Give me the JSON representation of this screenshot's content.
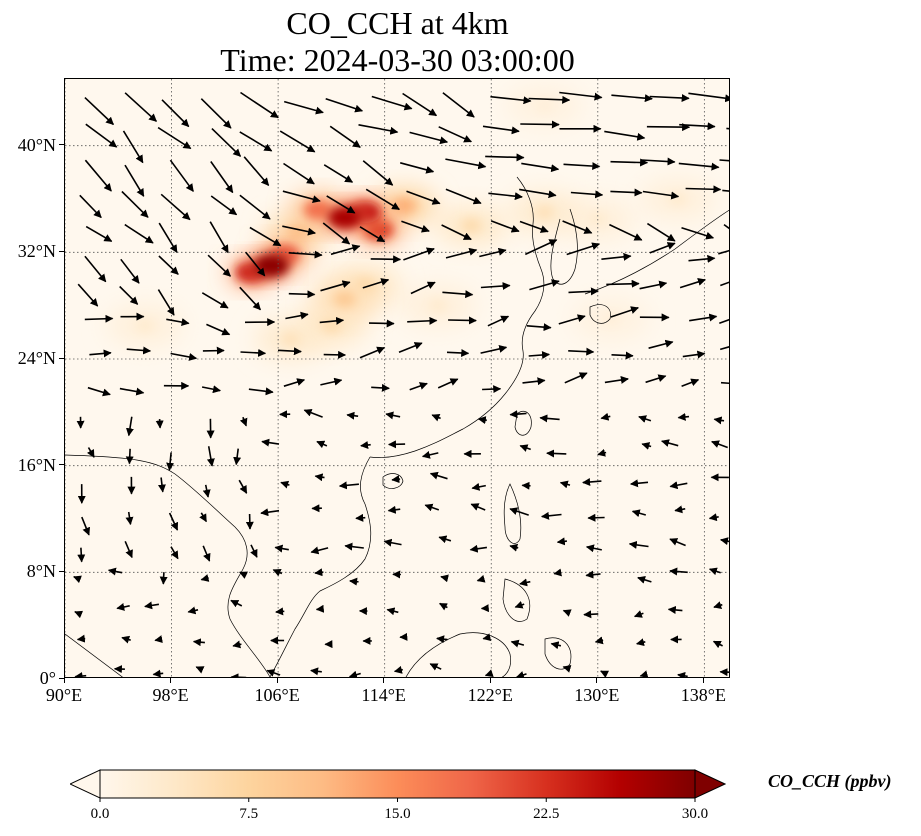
{
  "title": {
    "line1": "CO_CCH at 4km",
    "line2": "Time: 2024-03-30 03:00:00"
  },
  "axes": {
    "lon_range": [
      90,
      140
    ],
    "lat_range": [
      0,
      45
    ],
    "lon_ticks": [
      {
        "value": 90,
        "label": "90°E"
      },
      {
        "value": 98,
        "label": "98°E"
      },
      {
        "value": 106,
        "label": "106°E"
      },
      {
        "value": 114,
        "label": "114°E"
      },
      {
        "value": 122,
        "label": "122°E"
      },
      {
        "value": 130,
        "label": "130°E"
      },
      {
        "value": 138,
        "label": "138°E"
      }
    ],
    "lat_ticks": [
      {
        "value": 0,
        "label": "0°"
      },
      {
        "value": 8,
        "label": "8°N"
      },
      {
        "value": 16,
        "label": "16°N"
      },
      {
        "value": 24,
        "label": "24°N"
      },
      {
        "value": 32,
        "label": "32°N"
      },
      {
        "value": 40,
        "label": "40°N"
      }
    ],
    "gridlines": "dotted"
  },
  "colorbar": {
    "label": "CO_CCH (ppbv)",
    "colormap": "OrRd",
    "range": [
      0,
      30
    ],
    "extend": "both",
    "ticks": [
      {
        "value": 0,
        "label": "0.0"
      },
      {
        "value": 7.5,
        "label": "7.5"
      },
      {
        "value": 15,
        "label": "15.0"
      },
      {
        "value": 22.5,
        "label": "22.5"
      },
      {
        "value": 30,
        "label": "30.0"
      }
    ],
    "colors": [
      "#fff7ec",
      "#fee8c8",
      "#fdd49e",
      "#fdbb84",
      "#fc8d59",
      "#ef6548",
      "#d7301f",
      "#b30000",
      "#7f0000"
    ]
  },
  "chart_data": {
    "type": "heatmap",
    "variable": "CO_CCH",
    "units": "ppbv",
    "level": "4km",
    "time": "2024-03-30 03:00:00",
    "plumes": [
      {
        "lon": 105.5,
        "lat": 31.0,
        "value": 29
      },
      {
        "lon": 104.0,
        "lat": 30.5,
        "value": 24
      },
      {
        "lon": 106.5,
        "lat": 31.8,
        "value": 20
      },
      {
        "lon": 111.0,
        "lat": 34.6,
        "value": 27
      },
      {
        "lon": 112.5,
        "lat": 35.0,
        "value": 25
      },
      {
        "lon": 113.5,
        "lat": 33.7,
        "value": 22
      },
      {
        "lon": 109.0,
        "lat": 35.2,
        "value": 18
      },
      {
        "lon": 115.5,
        "lat": 35.5,
        "value": 12
      },
      {
        "lon": 107.5,
        "lat": 33.5,
        "value": 10
      },
      {
        "lon": 111.0,
        "lat": 28.5,
        "value": 9
      },
      {
        "lon": 112.5,
        "lat": 29.5,
        "value": 7
      },
      {
        "lon": 110.0,
        "lat": 26.5,
        "value": 6
      },
      {
        "lon": 107.0,
        "lat": 25.5,
        "value": 5
      },
      {
        "lon": 120.5,
        "lat": 34.0,
        "value": 6
      },
      {
        "lon": 126.0,
        "lat": 35.0,
        "value": 5
      },
      {
        "lon": 130.0,
        "lat": 34.5,
        "value": 3
      },
      {
        "lon": 136.0,
        "lat": 36.0,
        "value": 3
      },
      {
        "lon": 96.0,
        "lat": 26.5,
        "value": 3
      },
      {
        "lon": 118.0,
        "lat": 28.0,
        "value": 3
      },
      {
        "lon": 131.0,
        "lat": 27.0,
        "value": 2
      },
      {
        "lon": 126.0,
        "lat": 43.0,
        "value": 2
      }
    ]
  }
}
